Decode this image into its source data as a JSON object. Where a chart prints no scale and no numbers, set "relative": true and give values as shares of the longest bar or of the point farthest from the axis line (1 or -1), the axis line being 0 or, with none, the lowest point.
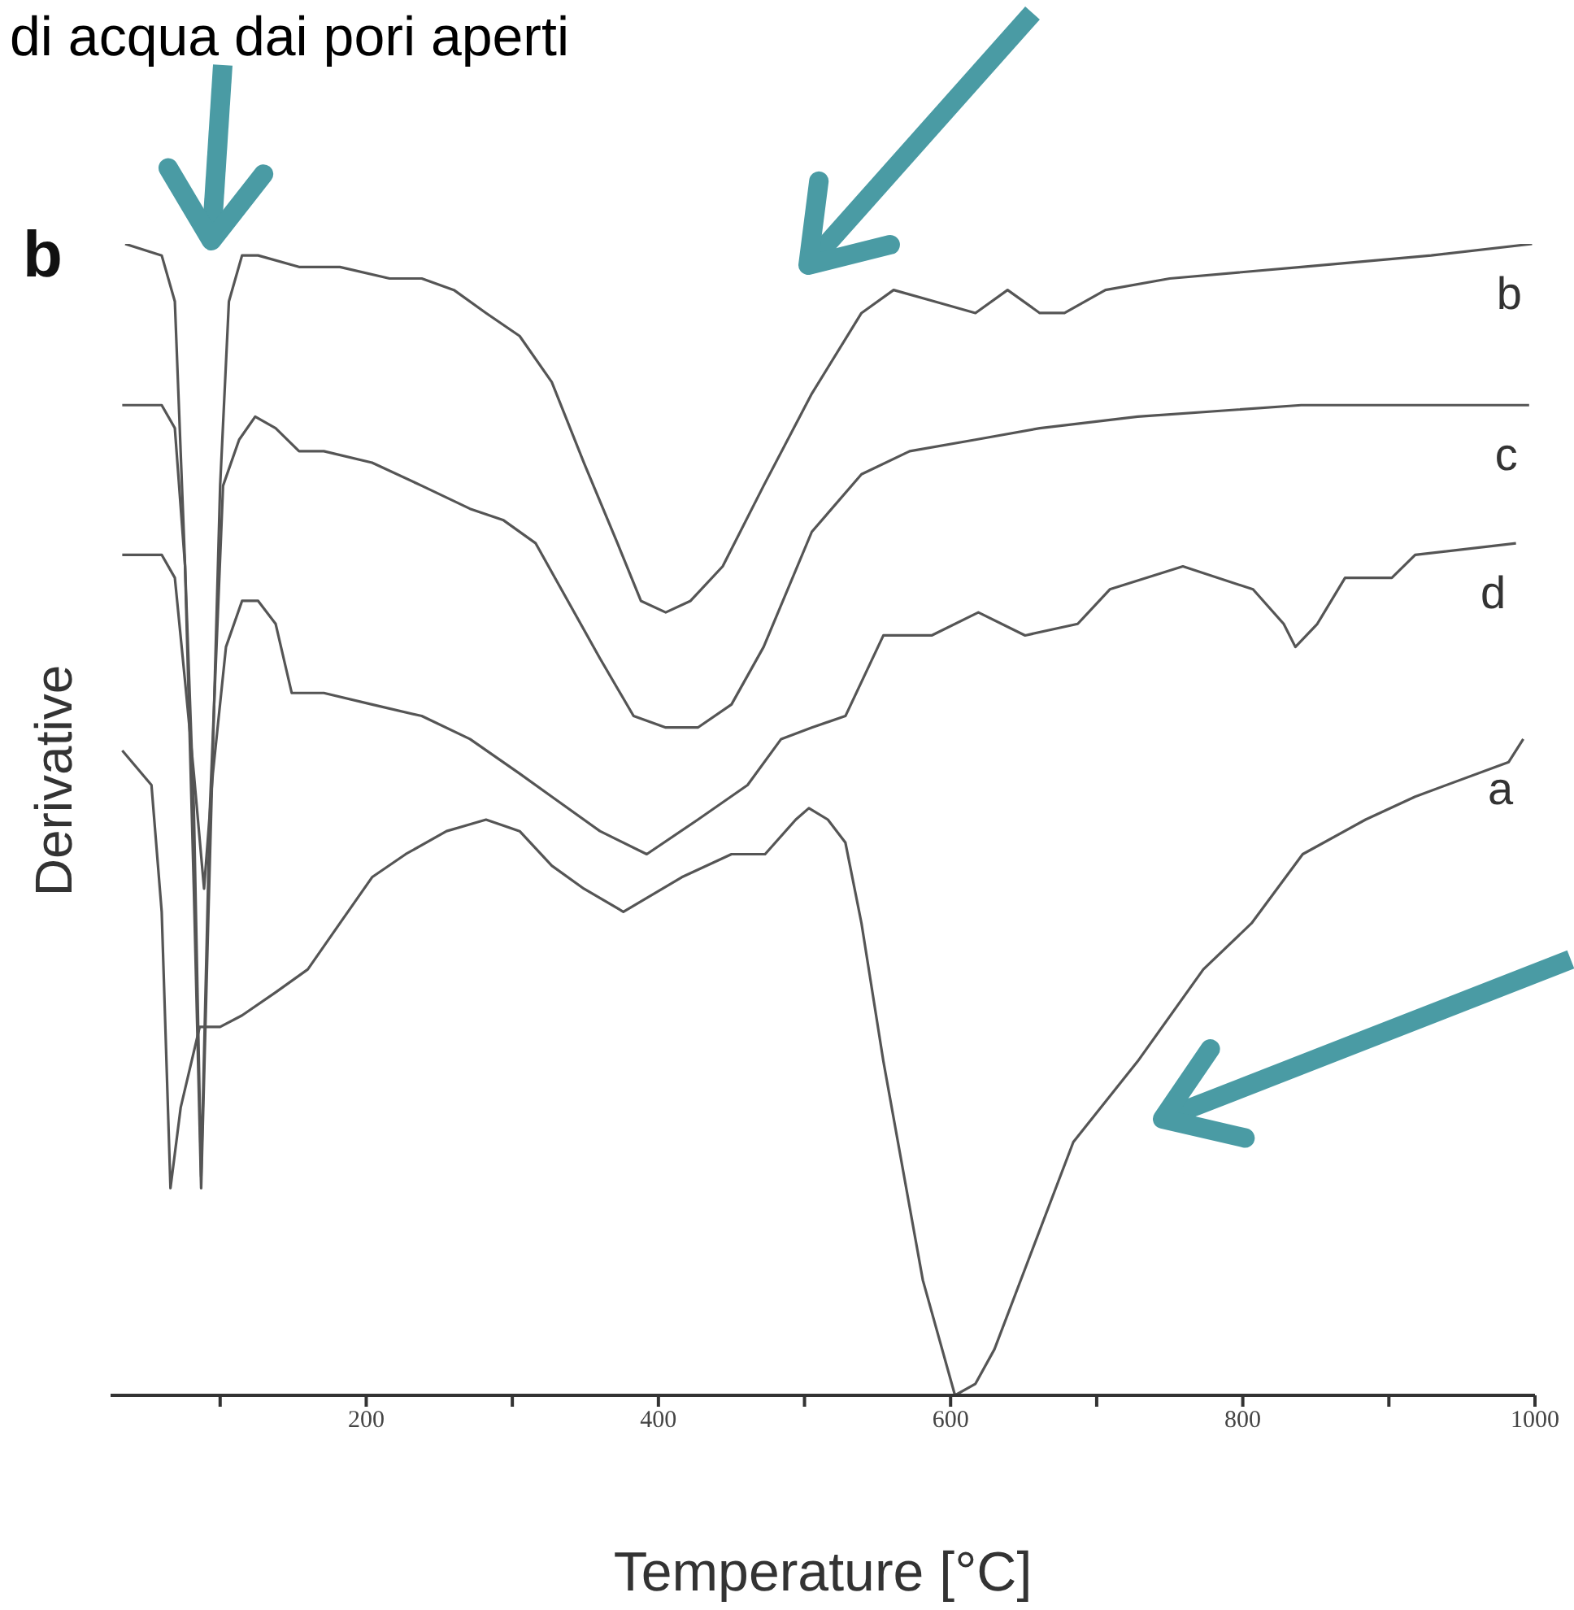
{
  "chart_data": {
    "type": "line",
    "relative": true,
    "xlabel": "Temperature [°C]",
    "ylabel": "Derivative",
    "annotations": [
      "b",
      "di acqua dai pori aperti"
    ],
    "xlim": [
      25,
      1000
    ],
    "xticks": [
      {
        "value": 100,
        "label": null
      },
      200,
      {
        "value": 300,
        "label": null
      },
      400,
      {
        "value": 500,
        "label": null
      },
      600,
      {
        "value": 700,
        "label": null
      },
      800,
      {
        "value": 900,
        "label": null
      },
      1000
    ],
    "grid": false,
    "legend": false,
    "line_style": "solid",
    "series": [
      {
        "name": "b",
        "color": "#555555",
        "x": [
          35,
          60,
          69,
          76,
          82,
          87,
          92,
          100,
          106,
          115,
          126,
          154,
          182,
          216,
          238,
          260,
          282,
          305,
          327,
          349,
          372,
          388,
          405,
          422,
          444,
          472,
          505,
          539,
          561,
          589,
          617,
          639,
          661,
          678,
          706,
          750,
          840,
          929,
          998
        ],
        "values": [
          1.0,
          0.99,
          0.95,
          0.72,
          0.44,
          0.18,
          0.42,
          0.79,
          0.95,
          0.99,
          0.99,
          0.98,
          0.98,
          0.97,
          0.97,
          0.96,
          0.94,
          0.92,
          0.88,
          0.81,
          0.74,
          0.69,
          0.68,
          0.69,
          0.72,
          0.79,
          0.87,
          0.94,
          0.96,
          0.95,
          0.94,
          0.96,
          0.94,
          0.94,
          0.96,
          0.97,
          0.98,
          0.99,
          1.0
        ]
      },
      {
        "name": "c",
        "color": "#555555",
        "x": [
          33,
          60,
          69,
          76,
          82,
          87,
          93,
          102,
          113,
          124,
          138,
          154,
          171,
          204,
          238,
          271,
          294,
          316,
          338,
          360,
          383,
          405,
          427,
          450,
          472,
          505,
          539,
          572,
          617,
          661,
          728,
          840,
          951,
          996
        ],
        "values": [
          0.86,
          0.86,
          0.84,
          0.72,
          0.51,
          0.19,
          0.51,
          0.79,
          0.83,
          0.85,
          0.84,
          0.82,
          0.82,
          0.81,
          0.79,
          0.77,
          0.76,
          0.74,
          0.69,
          0.64,
          0.59,
          0.58,
          0.58,
          0.6,
          0.65,
          0.75,
          0.8,
          0.82,
          0.83,
          0.84,
          0.85,
          0.86,
          0.86,
          0.86
        ]
      },
      {
        "name": "d",
        "color": "#555555",
        "x": [
          33,
          60,
          69,
          76,
          82,
          89,
          95,
          104,
          115,
          126,
          138,
          149,
          171,
          204,
          238,
          271,
          305,
          327,
          360,
          392,
          427,
          461,
          484,
          505,
          528,
          554,
          587,
          619,
          651,
          687,
          709,
          759,
          807,
          828,
          836,
          851,
          870,
          902,
          918,
          987
        ],
        "values": [
          0.73,
          0.73,
          0.71,
          0.62,
          0.54,
          0.44,
          0.54,
          0.65,
          0.69,
          0.69,
          0.67,
          0.61,
          0.61,
          0.6,
          0.59,
          0.57,
          0.54,
          0.52,
          0.49,
          0.47,
          0.5,
          0.53,
          0.57,
          0.58,
          0.59,
          0.66,
          0.66,
          0.68,
          0.66,
          0.67,
          0.7,
          0.72,
          0.7,
          0.67,
          0.65,
          0.67,
          0.71,
          0.71,
          0.73,
          0.74
        ]
      },
      {
        "name": "a",
        "color": "#555555",
        "x": [
          33,
          53,
          60,
          66,
          73,
          86,
          100,
          115,
          138,
          160,
          182,
          204,
          227,
          255,
          282,
          305,
          327,
          349,
          376,
          416,
          450,
          473,
          494,
          503,
          516,
          528,
          539,
          554,
          581,
          603,
          617,
          630,
          651,
          684,
          728,
          773,
          806,
          841,
          884,
          918,
          982,
          992
        ],
        "values": [
          0.56,
          0.53,
          0.42,
          0.18,
          0.25,
          0.32,
          0.32,
          0.33,
          0.35,
          0.37,
          0.41,
          0.45,
          0.47,
          0.49,
          0.5,
          0.49,
          0.46,
          0.44,
          0.42,
          0.45,
          0.47,
          0.47,
          0.5,
          0.51,
          0.5,
          0.48,
          0.41,
          0.29,
          0.1,
          0.0,
          0.01,
          0.04,
          0.11,
          0.22,
          0.29,
          0.37,
          0.41,
          0.47,
          0.5,
          0.52,
          0.55,
          0.57
        ]
      }
    ]
  }
}
